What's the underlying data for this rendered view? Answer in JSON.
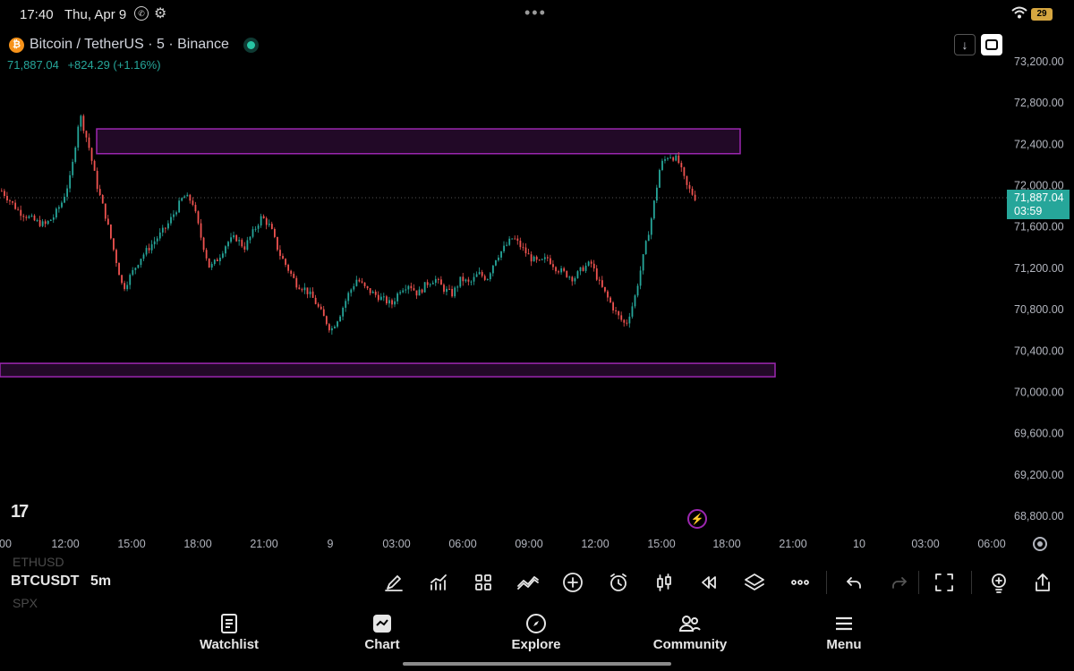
{
  "status_bar": {
    "time": "17:40",
    "date": "Thu, Apr 9",
    "battery": "29",
    "icons": [
      "whatsapp-icon",
      "gear-icon",
      "more-dots-icon",
      "wifi-icon",
      "battery-icon"
    ]
  },
  "header": {
    "title": "Bitcoin / TetherUS · 5 · Binance",
    "price": "71,887.04",
    "change": "+824.29 (+1.16%)"
  },
  "chart": {
    "current_price_label": "71,887.04",
    "countdown": "03:59",
    "y_ticks": [
      "73,200.00",
      "72,800.00",
      "72,400.00",
      "72,000.00",
      "71,600.00",
      "71,200.00",
      "70,800.00",
      "70,400.00",
      "70,000.00",
      "69,600.00",
      "69,200.00",
      "68,800.00"
    ],
    "x_ticks": [
      "00",
      "12:00",
      "15:00",
      "18:00",
      "21:00",
      "9",
      "03:00",
      "06:00",
      "09:00",
      "12:00",
      "15:00",
      "18:00",
      "21:00",
      "10",
      "03:00",
      "06:00"
    ],
    "logo": "17",
    "colors": {
      "up": "#26a69a",
      "down": "#ef5350",
      "zone": "#9c27b0",
      "price_label": "#26a69a"
    }
  },
  "chart_data": {
    "type": "candlestick",
    "title": "Bitcoin / TetherUS · 5 · Binance",
    "ylim": [
      68700,
      73400
    ],
    "zones": [
      {
        "top": 72550,
        "bottom": 72310
      },
      {
        "top": 70280,
        "bottom": 70150
      }
    ],
    "path_close": [
      71950,
      71850,
      71750,
      71700,
      71650,
      71620,
      71700,
      71850,
      72100,
      72700,
      72400,
      72000,
      71700,
      71350,
      71000,
      71150,
      71300,
      71400,
      71500,
      71600,
      71750,
      71900,
      71850,
      71500,
      71200,
      71300,
      71450,
      71500,
      71400,
      71550,
      71700,
      71600,
      71350,
      71200,
      71050,
      71000,
      70900,
      70750,
      70600,
      70750,
      70950,
      71100,
      71000,
      70950,
      70900,
      70850,
      71000,
      71050,
      70950,
      71050,
      71100,
      71000,
      70950,
      71100,
      71050,
      71150,
      71100,
      71300,
      71400,
      71500,
      71400,
      71300,
      71250,
      71300,
      71200,
      71150,
      71100,
      71200,
      71250,
      71050,
      70900,
      70750,
      70650,
      70900,
      71300,
      71700,
      72200,
      72300,
      72250,
      72000,
      71887
    ]
  },
  "toolbar": {
    "ticker_prev": "ETHUSD",
    "ticker": "BTCUSDT",
    "timeframe": "5m",
    "ticker_next": "SPX",
    "tools": [
      "draw-pen-icon",
      "indicators-icon",
      "templates-grid-icon",
      "compare-icon",
      "add-circle-icon",
      "alert-clock-icon",
      "candle-type-icon",
      "replay-icon",
      "layers-icon",
      "more-dots-icon",
      "undo-icon",
      "redo-icon",
      "fullscreen-icon",
      "idea-icon",
      "share-icon"
    ]
  },
  "nav": {
    "watchlist": "Watchlist",
    "chart": "Chart",
    "explore": "Explore",
    "community": "Community",
    "menu": "Menu"
  }
}
